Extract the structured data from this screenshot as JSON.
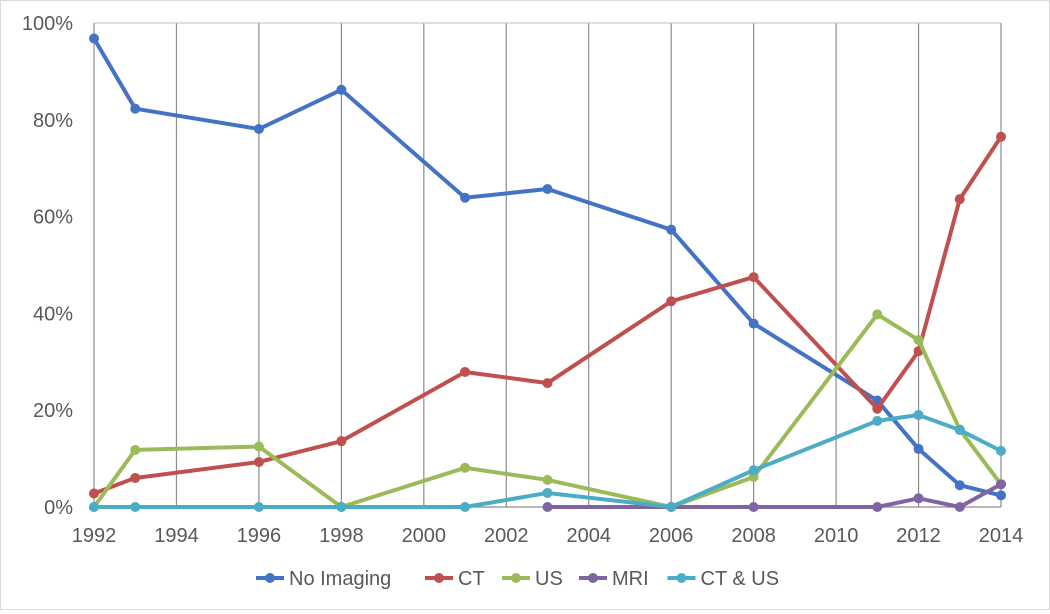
{
  "chart_data": {
    "type": "line",
    "title": "",
    "xlabel": "",
    "ylabel": "",
    "xlim": [
      1992,
      2014
    ],
    "ylim": [
      0,
      100
    ],
    "x_ticks": [
      1992,
      1994,
      1996,
      1998,
      2000,
      2002,
      2004,
      2006,
      2008,
      2010,
      2012,
      2014
    ],
    "x_tick_labels": [
      "1992",
      "1994",
      "1996",
      "1998",
      "2000",
      "2002",
      "2004",
      "2006",
      "2008",
      "2010",
      "2012",
      "2014"
    ],
    "y_ticks": [
      0,
      20,
      40,
      60,
      80,
      100
    ],
    "y_tick_labels": [
      "0%",
      "20%",
      "40%",
      "60%",
      "80%",
      "100%"
    ],
    "grid": "vertical",
    "legend_position": "bottom",
    "x": [
      1992,
      1993,
      1996,
      1998,
      2001,
      2003,
      2006,
      2008,
      2011,
      2012,
      2013,
      2014
    ],
    "series": [
      {
        "name": "No Imaging",
        "color": "#4472c4",
        "values": [
          96.8,
          82.3,
          78.1,
          86.2,
          63.9,
          65.7,
          57.3,
          37.9,
          22.0,
          12.0,
          4.5,
          2.4
        ]
      },
      {
        "name": "CT",
        "color": "#c0504d",
        "values": [
          2.8,
          6.0,
          9.3,
          13.6,
          27.9,
          25.6,
          42.5,
          47.5,
          20.3,
          32.2,
          63.6,
          76.5
        ]
      },
      {
        "name": "US",
        "color": "#9bbb59",
        "values": [
          0.0,
          11.8,
          12.5,
          0.0,
          8.1,
          5.6,
          0.0,
          6.2,
          39.8,
          34.5,
          16.0,
          4.7
        ]
      },
      {
        "name": "MRI",
        "color": "#8064a2",
        "values": [
          null,
          null,
          null,
          null,
          null,
          0.0,
          0.0,
          0.0,
          0.0,
          1.8,
          0.0,
          4.7
        ]
      },
      {
        "name": "CT & US",
        "color": "#4bacc6",
        "values": [
          0.0,
          0.0,
          0.0,
          0.0,
          0.0,
          2.9,
          0.0,
          7.6,
          17.8,
          19.0,
          15.9,
          11.6
        ]
      }
    ]
  }
}
